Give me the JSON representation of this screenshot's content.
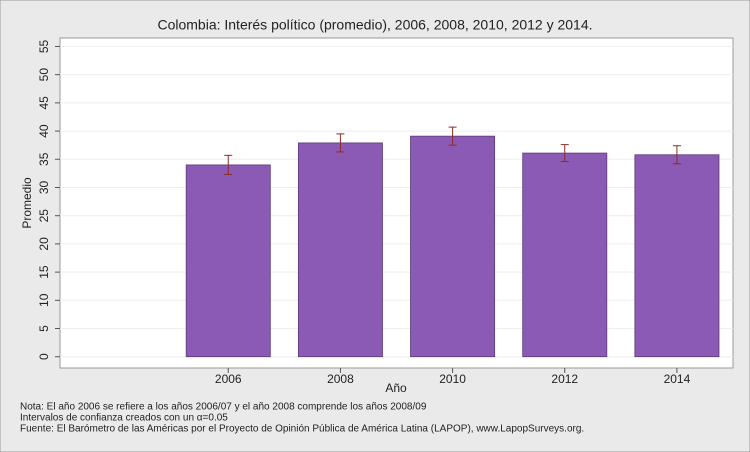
{
  "chart_data": {
    "type": "bar",
    "title": "Colombia: Interés político (promedio), 2006, 2008, 2010, 2012 y 2014.",
    "x_label": "Año",
    "y_label": "Promedio",
    "categories": [
      "2006",
      "2008",
      "2010",
      "2012",
      "2014"
    ],
    "values": [
      34.0,
      37.9,
      39.1,
      36.1,
      35.8
    ],
    "errors": [
      1.7,
      1.6,
      1.6,
      1.5,
      1.6
    ],
    "color": "#8b5ab4",
    "error_color": "#8b2a2a",
    "ylim": [
      -2,
      56.5
    ],
    "yticks": [
      0,
      5,
      10,
      15,
      20,
      25,
      30,
      35,
      40,
      45,
      50,
      55
    ],
    "grid": true,
    "notes": [
      "Nota: El año 2006 se refiere a los años 2006/07 y el año 2008 comprende los años 2008/09",
      "Intervalos de confianza creados con un α=0.05",
      "Fuente: El Barómetro de las Américas por el Proyecto de Opinión Pública de América Latina (LAPOP), www.LapopSurveys.org."
    ]
  }
}
